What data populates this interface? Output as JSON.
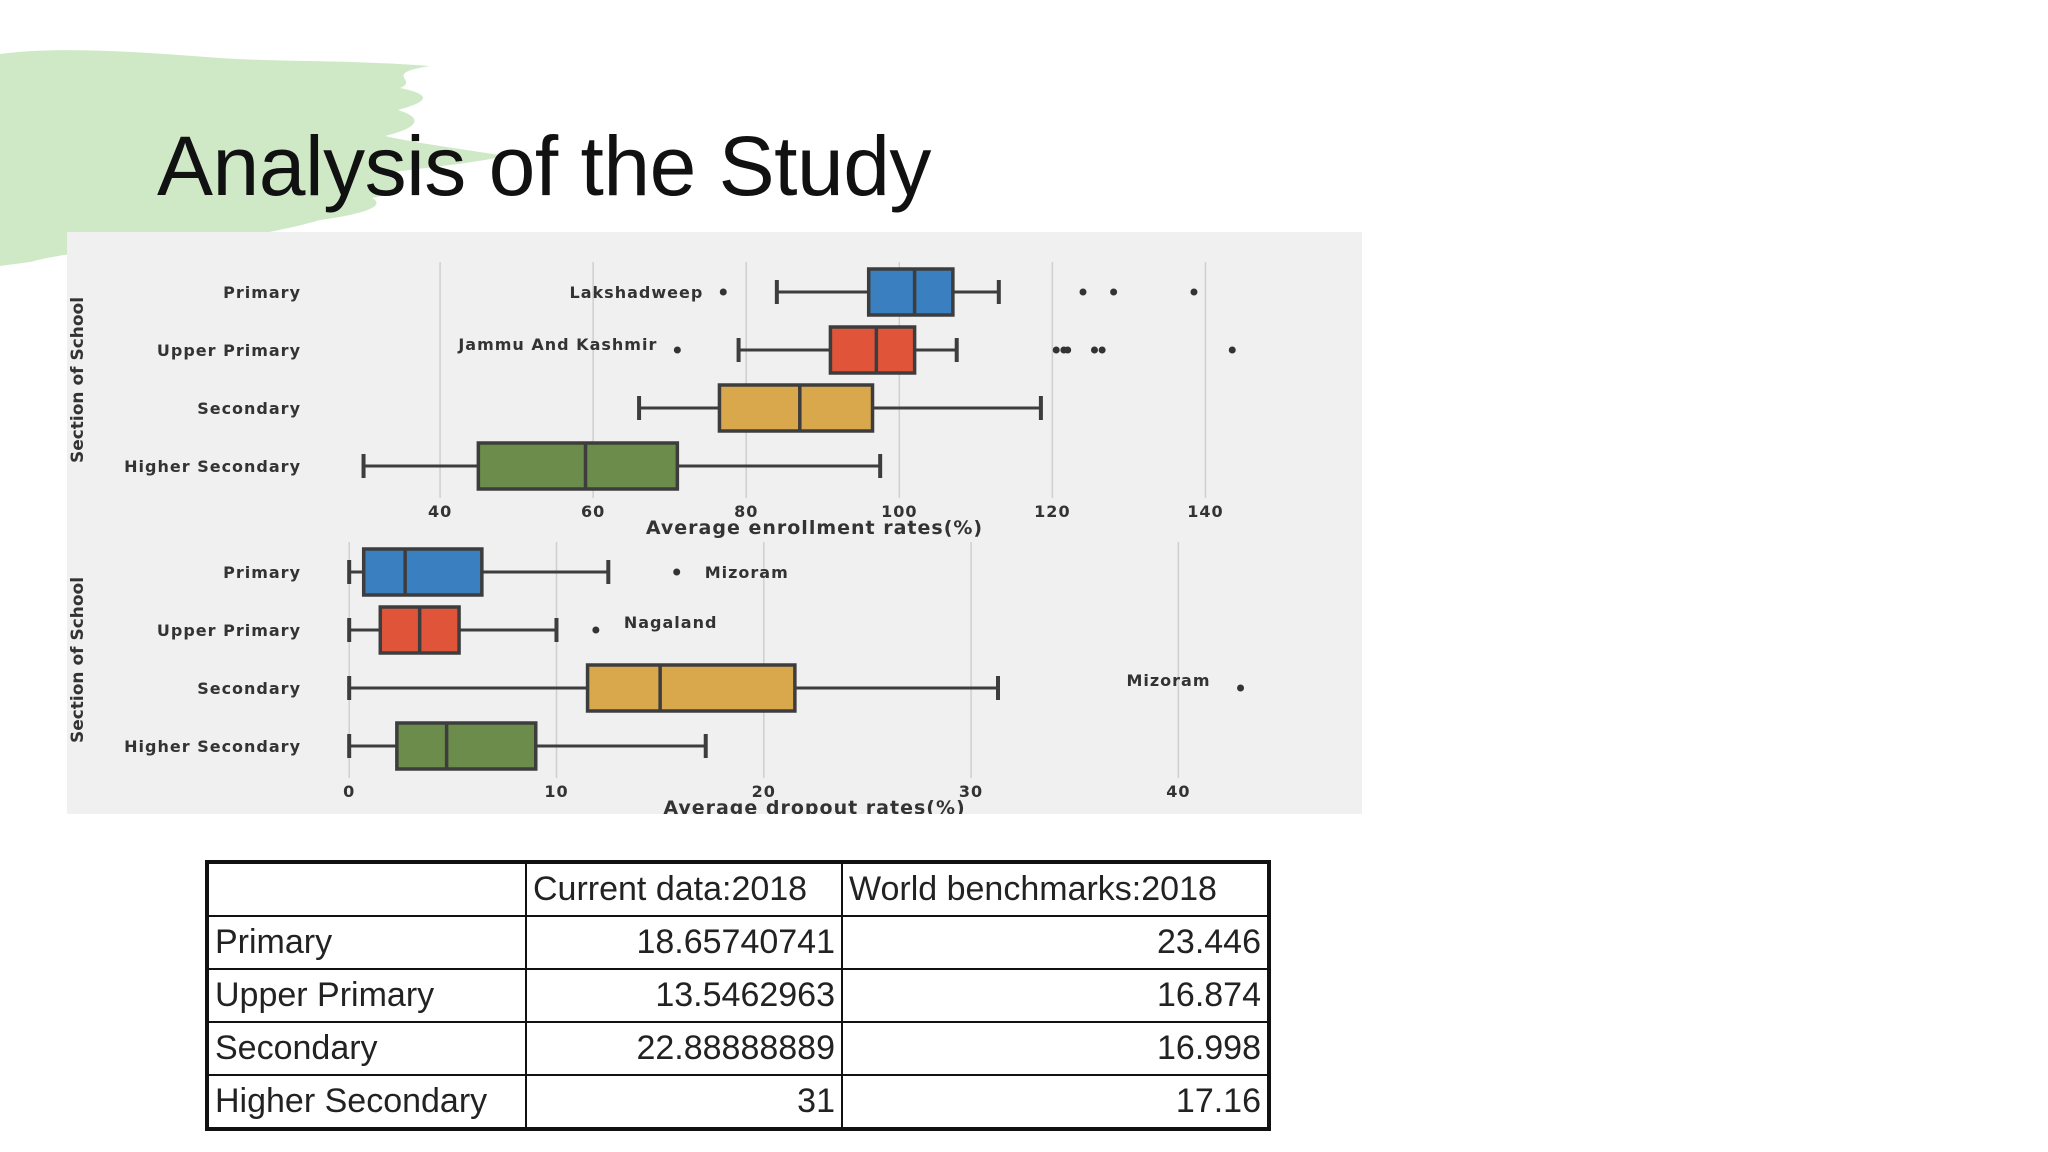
{
  "slide": {
    "title": "Analysis of the Study",
    "accent_color": "#cfe9c7"
  },
  "chart_data": [
    {
      "type": "box",
      "xlabel": "Average enrollment rates(%)",
      "ylabel": "Section of School",
      "xlim": [
        20,
        150
      ],
      "xticks": [
        40,
        60,
        80,
        100,
        120,
        140
      ],
      "grid": true,
      "categories": [
        "Primary",
        "Upper Primary",
        "Secondary",
        "Higher Secondary"
      ],
      "colors": [
        "#3a7fc0",
        "#e0553a",
        "#d9a84c",
        "#6b8c4a"
      ],
      "boxes": [
        {
          "name": "Primary",
          "whislo": 84,
          "q1": 96,
          "med": 102,
          "q3": 107,
          "whishi": 113,
          "fliers": [
            77,
            124,
            128,
            138.5
          ]
        },
        {
          "name": "Upper Primary",
          "whislo": 79,
          "q1": 91,
          "med": 97,
          "q3": 102,
          "whishi": 107.5,
          "fliers": [
            71,
            120.5,
            121.5,
            122,
            125.5,
            126.5,
            143.5
          ]
        },
        {
          "name": "Secondary",
          "whislo": 66,
          "q1": 76.5,
          "med": 87,
          "q3": 96.5,
          "whishi": 118.5,
          "fliers": []
        },
        {
          "name": "Higher Secondary",
          "whislo": 30,
          "q1": 45,
          "med": 59,
          "q3": 71,
          "whishi": 97.5,
          "fliers": []
        }
      ],
      "annotations": [
        {
          "text": "Lakshadweep",
          "category": "Primary"
        },
        {
          "text": "Jammu And Kashmir",
          "category": "Upper Primary"
        }
      ]
    },
    {
      "type": "box",
      "xlabel": "Average dropout rates(%)",
      "ylabel": "Section of School",
      "xlim": [
        -3,
        45
      ],
      "xticks": [
        0,
        10,
        20,
        30,
        40
      ],
      "grid": true,
      "categories": [
        "Primary",
        "Upper Primary",
        "Secondary",
        "Higher Secondary"
      ],
      "colors": [
        "#3a7fc0",
        "#e0553a",
        "#d9a84c",
        "#6b8c4a"
      ],
      "boxes": [
        {
          "name": "Primary",
          "whislo": 0,
          "q1": 0.7,
          "med": 2.7,
          "q3": 6.4,
          "whishi": 12.5,
          "fliers": [
            15.8
          ]
        },
        {
          "name": "Upper Primary",
          "whislo": 0,
          "q1": 1.5,
          "med": 3.4,
          "q3": 5.3,
          "whishi": 10,
          "fliers": [
            11.9
          ]
        },
        {
          "name": "Secondary",
          "whislo": 0,
          "q1": 11.5,
          "med": 15,
          "q3": 21.5,
          "whishi": 31.3,
          "fliers": [
            43
          ]
        },
        {
          "name": "Higher Secondary",
          "whislo": 0,
          "q1": 2.3,
          "med": 4.7,
          "q3": 9,
          "whishi": 17.2,
          "fliers": []
        }
      ],
      "annotations": [
        {
          "text": "Mizoram",
          "category": "Primary"
        },
        {
          "text": "Nagaland",
          "category": "Upper Primary"
        },
        {
          "text": "Mizoram",
          "category": "Secondary"
        }
      ]
    }
  ],
  "table": {
    "headers": [
      "",
      "Current data:2018",
      "World benchmarks:2018"
    ],
    "rows": [
      [
        "Primary",
        "18.65740741",
        "23.446"
      ],
      [
        "Upper Primary",
        "13.5462963",
        "16.874"
      ],
      [
        "Secondary",
        "22.88888889",
        "16.998"
      ],
      [
        "Higher Secondary",
        "31",
        "17.16"
      ]
    ]
  }
}
